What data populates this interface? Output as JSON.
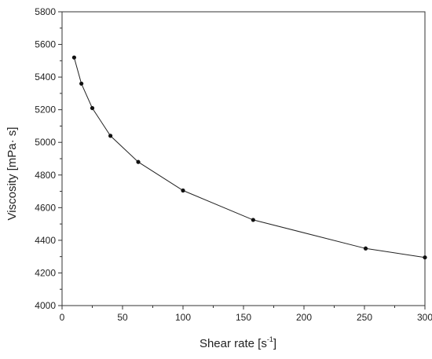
{
  "chart_data": {
    "type": "line",
    "title": "",
    "xlabel": "Shear rate [s",
    "xlabel_sup": "-1",
    "xlabel_suffix": "]",
    "ylabel": "Viscosity [mPa· s]",
    "xlim": [
      0,
      300
    ],
    "ylim": [
      4000,
      5800
    ],
    "xticks": [
      "0",
      "50",
      "100",
      "150",
      "200",
      "250",
      "300"
    ],
    "yticks": [
      "4000",
      "4200",
      "4400",
      "4600",
      "4800",
      "5000",
      "5200",
      "5400",
      "5600",
      "5800"
    ],
    "grid": false,
    "legend": "none",
    "series": [
      {
        "x": [
          10,
          16,
          25,
          40,
          63,
          100,
          158,
          251,
          300
        ],
        "y": [
          5520,
          5360,
          5210,
          5040,
          4880,
          4705,
          4525,
          4350,
          4295
        ]
      }
    ],
    "colors": {
      "line": "#222222",
      "marker": "#111111",
      "axis": "#333333"
    }
  }
}
